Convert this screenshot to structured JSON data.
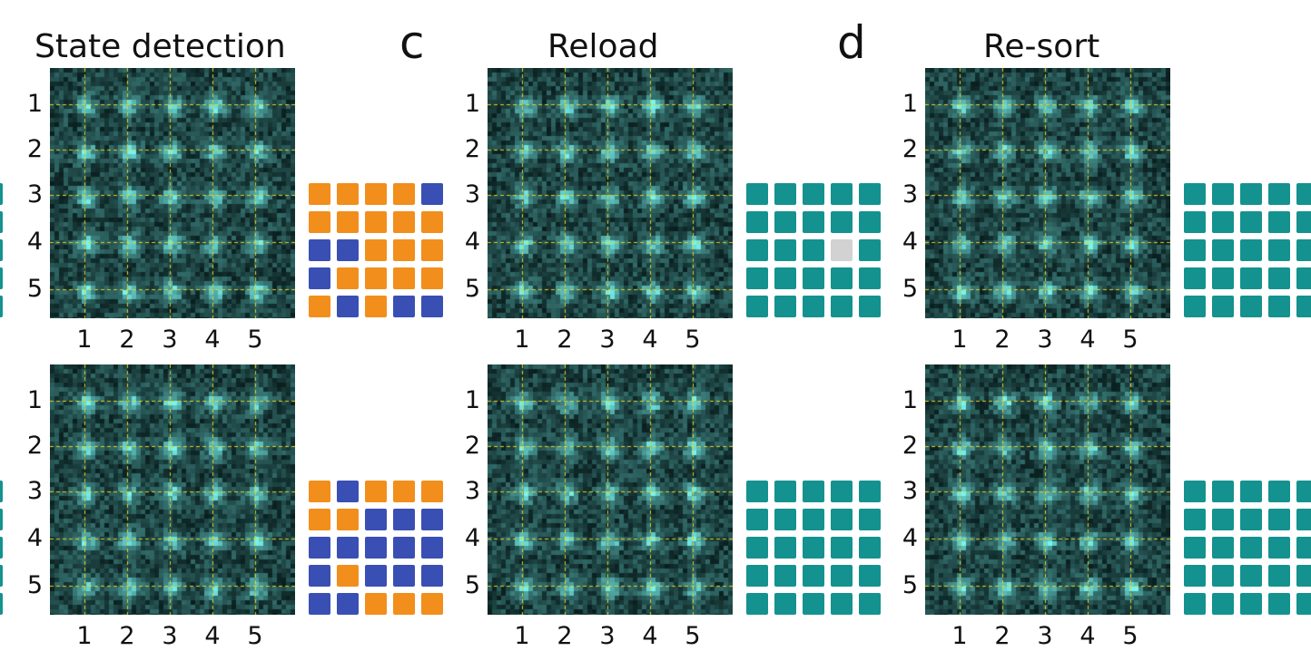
{
  "titles": {
    "col1": "State detection",
    "col2": "Reload",
    "col3": "Re-sort"
  },
  "panel_labels": {
    "c": "c",
    "d": "d"
  },
  "axis_ticks": [
    "1",
    "2",
    "3",
    "4",
    "5"
  ],
  "colors": {
    "occupied": "#f28e1c",
    "empty": "#3a4fb3",
    "filled": "#14928f",
    "missing": "#d2d2d2",
    "atom_glow": "#6cf5f0",
    "grid_line": "#e6d21e",
    "image_bg": "#020a0a"
  },
  "state_grids": {
    "state_top": [
      [
        "O",
        "O",
        "O",
        "O",
        "B"
      ],
      [
        "O",
        "O",
        "O",
        "O",
        "O"
      ],
      [
        "B",
        "B",
        "O",
        "O",
        "O"
      ],
      [
        "B",
        "O",
        "O",
        "O",
        "O"
      ],
      [
        "O",
        "B",
        "O",
        "B",
        "B"
      ]
    ],
    "state_bottom": [
      [
        "O",
        "B",
        "O",
        "O",
        "O"
      ],
      [
        "O",
        "O",
        "B",
        "B",
        "B"
      ],
      [
        "B",
        "B",
        "B",
        "B",
        "B"
      ],
      [
        "B",
        "O",
        "B",
        "B",
        "B"
      ],
      [
        "B",
        "B",
        "O",
        "O",
        "O"
      ]
    ],
    "reload_top": [
      [
        "T",
        "T",
        "T",
        "T",
        "T"
      ],
      [
        "T",
        "T",
        "T",
        "T",
        "T"
      ],
      [
        "T",
        "T",
        "T",
        "G",
        "T"
      ],
      [
        "T",
        "T",
        "T",
        "T",
        "T"
      ],
      [
        "T",
        "T",
        "T",
        "T",
        "T"
      ]
    ],
    "reload_bottom": [
      [
        "T",
        "T",
        "T",
        "T",
        "T"
      ],
      [
        "T",
        "T",
        "T",
        "T",
        "T"
      ],
      [
        "T",
        "T",
        "T",
        "T",
        "T"
      ],
      [
        "T",
        "T",
        "T",
        "T",
        "T"
      ],
      [
        "T",
        "T",
        "T",
        "T",
        "T"
      ]
    ]
  }
}
